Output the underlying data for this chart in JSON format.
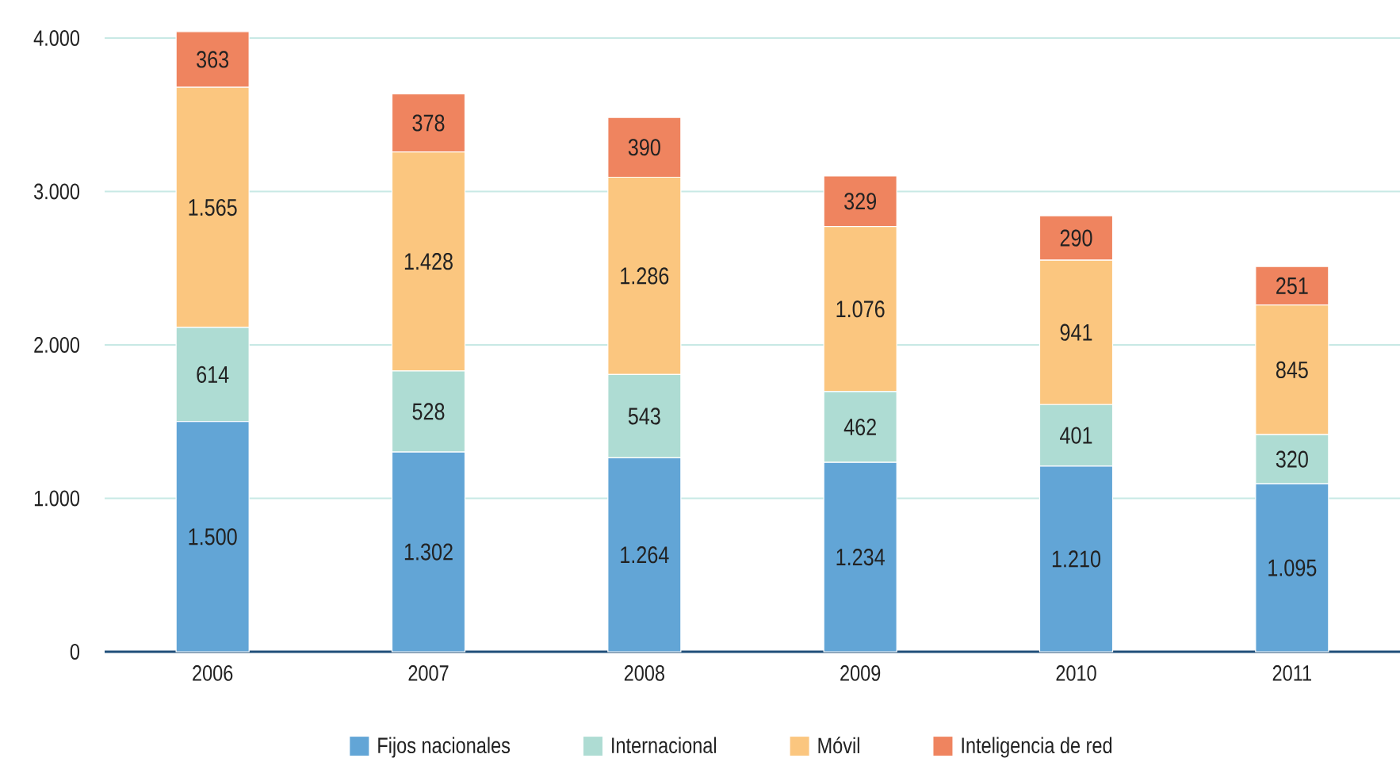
{
  "chart_data": {
    "type": "bar",
    "stacked": true,
    "categories": [
      "2006",
      "2007",
      "2008",
      "2009",
      "2010",
      "2011"
    ],
    "series": [
      {
        "name": "Fijos nacionales",
        "color": "#62a5d6",
        "values": [
          1500,
          1302,
          1264,
          1234,
          1210,
          1095
        ],
        "value_labels": [
          "1.500",
          "1.302",
          "1.264",
          "1.234",
          "1.210",
          "1.095"
        ]
      },
      {
        "name": "Internacional",
        "color": "#aedcd3",
        "values": [
          614,
          528,
          543,
          462,
          401,
          320
        ],
        "value_labels": [
          "614",
          "528",
          "543",
          "462",
          "401",
          "320"
        ]
      },
      {
        "name": "Móvil",
        "color": "#fbc67f",
        "values": [
          1565,
          1428,
          1286,
          1076,
          941,
          845
        ],
        "value_labels": [
          "1.565",
          "1.428",
          "1.286",
          "1.076",
          "941",
          "845"
        ]
      },
      {
        "name": "Inteligencia de red",
        "color": "#ef845f",
        "values": [
          363,
          378,
          390,
          329,
          290,
          251
        ],
        "value_labels": [
          "363",
          "378",
          "390",
          "329",
          "290",
          "251"
        ]
      }
    ],
    "ylim": [
      0,
      4050
    ],
    "yticks": [
      0,
      {
        "value": 1000,
        "label": "1.000"
      },
      {
        "value": 2000,
        "label": "2.000"
      },
      {
        "value": 3000,
        "label": "3.000"
      },
      {
        "value": 4000,
        "label": "4.000"
      }
    ],
    "grid": "y",
    "legend": "bottom"
  }
}
